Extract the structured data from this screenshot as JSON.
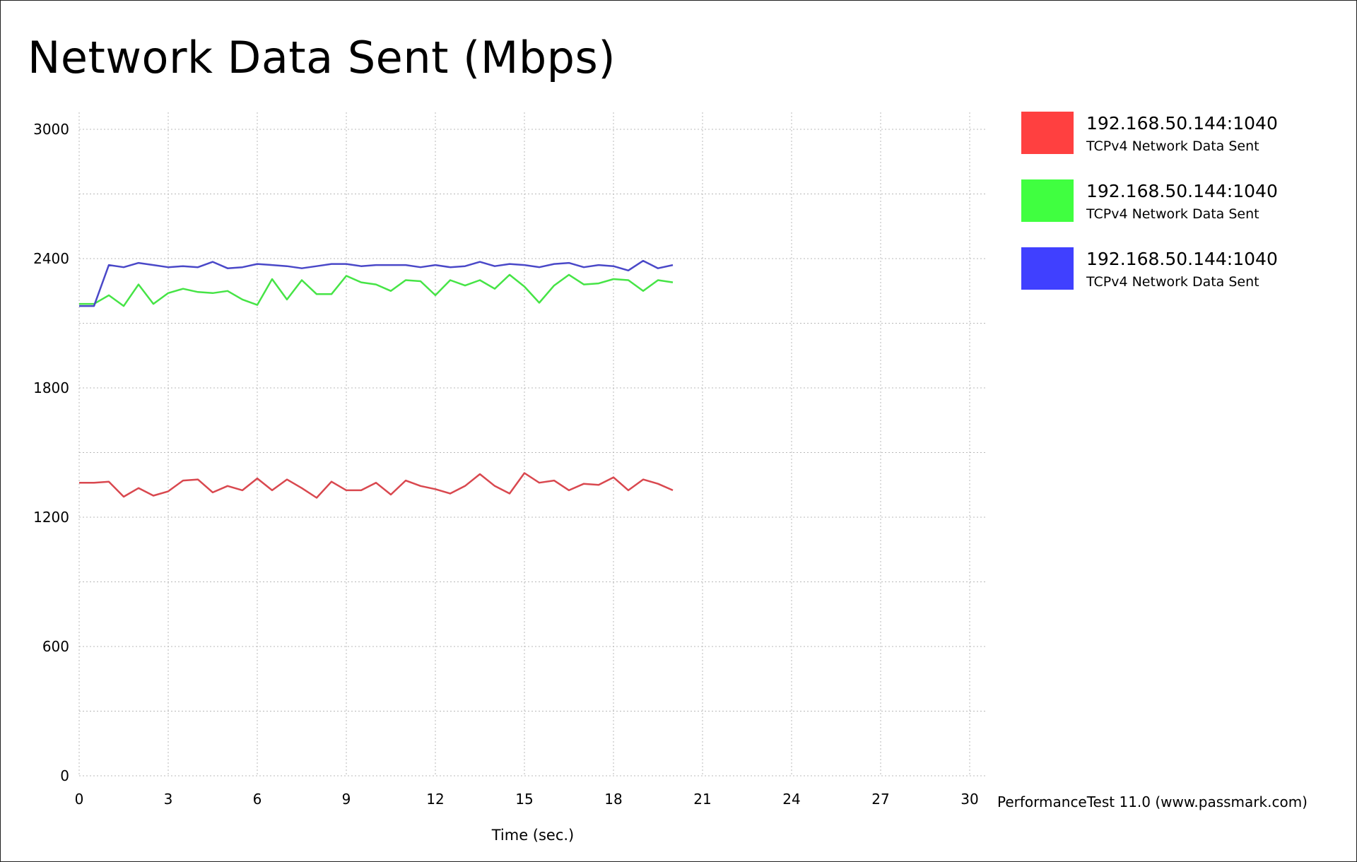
{
  "chart_data": {
    "type": "line",
    "title": "Network Data Sent (Mbps)",
    "xlabel": "Time (sec.)",
    "ylabel": "",
    "xlim": [
      0,
      30
    ],
    "ylim": [
      0,
      3000
    ],
    "x_ticks": [
      0,
      3,
      6,
      9,
      12,
      15,
      18,
      21,
      24,
      27,
      30
    ],
    "y_ticks": [
      0,
      600,
      1200,
      1800,
      2400,
      3000
    ],
    "grid": true,
    "legend_position": "right",
    "x": [
      0,
      0.5,
      1,
      1.5,
      2,
      2.5,
      3,
      3.5,
      4,
      4.5,
      5,
      5.5,
      6,
      6.5,
      7,
      7.5,
      8,
      8.5,
      9,
      9.5,
      10,
      10.5,
      11,
      11.5,
      12,
      12.5,
      13,
      13.5,
      14,
      14.5,
      15,
      15.5,
      16,
      16.5,
      17,
      17.5,
      18,
      18.5,
      19,
      19.5,
      20
    ],
    "series": [
      {
        "name": "192.168.50.144:1040",
        "subtitle": "TCPv4 Network Data Sent",
        "color": "#ff4040",
        "line_color": "#d9484f",
        "values": [
          1360,
          1360,
          1365,
          1295,
          1335,
          1300,
          1320,
          1370,
          1375,
          1315,
          1345,
          1325,
          1380,
          1325,
          1375,
          1335,
          1290,
          1365,
          1325,
          1325,
          1360,
          1305,
          1370,
          1345,
          1330,
          1310,
          1345,
          1400,
          1345,
          1310,
          1405,
          1360,
          1370,
          1325,
          1355,
          1350,
          1385,
          1325,
          1375,
          1355,
          1325
        ]
      },
      {
        "name": "192.168.50.144:1040",
        "subtitle": "TCPv4 Network Data Sent",
        "color": "#40ff40",
        "line_color": "#46e446",
        "values": [
          2190,
          2190,
          2230,
          2180,
          2280,
          2190,
          2240,
          2260,
          2245,
          2240,
          2250,
          2210,
          2185,
          2305,
          2210,
          2300,
          2235,
          2235,
          2320,
          2290,
          2280,
          2250,
          2300,
          2295,
          2230,
          2300,
          2275,
          2300,
          2260,
          2325,
          2270,
          2195,
          2275,
          2325,
          2280,
          2285,
          2305,
          2300,
          2250,
          2300,
          2290
        ]
      },
      {
        "name": "192.168.50.144:1040",
        "subtitle": "TCPv4 Network Data Sent",
        "color": "#4040ff",
        "line_color": "#4a48c8",
        "values": [
          2180,
          2180,
          2370,
          2360,
          2380,
          2370,
          2360,
          2365,
          2360,
          2385,
          2355,
          2360,
          2375,
          2370,
          2365,
          2355,
          2365,
          2375,
          2375,
          2365,
          2370,
          2370,
          2370,
          2360,
          2370,
          2360,
          2365,
          2385,
          2365,
          2375,
          2370,
          2360,
          2375,
          2380,
          2360,
          2370,
          2365,
          2345,
          2390,
          2355,
          2370
        ]
      }
    ]
  },
  "credit": "PerformanceTest 11.0 (www.passmark.com)"
}
